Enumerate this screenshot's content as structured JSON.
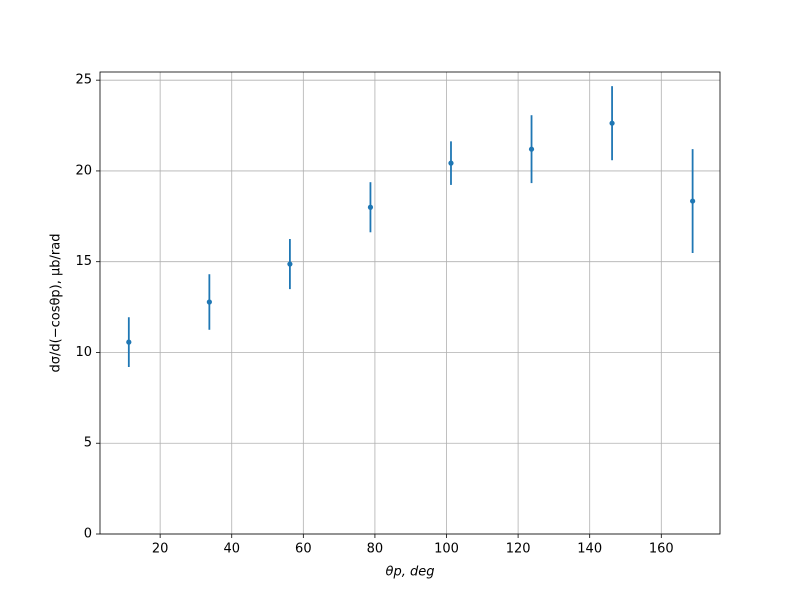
{
  "chart_data": {
    "type": "errorbar",
    "xlabel": "θp, deg",
    "ylabel": "dσ/d(−cosθp), μb/rad",
    "x": [
      11.25,
      33.75,
      56.25,
      78.75,
      101.25,
      123.75,
      146.25,
      168.75
    ],
    "series": [
      {
        "color": "#1f77b4",
        "values": [
          10.57,
          12.78,
          14.87,
          18.0,
          20.43,
          21.2,
          22.63,
          18.34
        ],
        "errors": [
          1.37,
          1.53,
          1.38,
          1.38,
          1.2,
          1.87,
          2.04,
          2.86
        ]
      }
    ],
    "xlim": [
      3.2,
      176.4
    ],
    "xticks": [
      20,
      40,
      60,
      80,
      100,
      120,
      140,
      160
    ],
    "ylim": [
      0,
      25.45
    ],
    "yticks": [
      0,
      5,
      10,
      15,
      20,
      25
    ],
    "grid": true
  }
}
